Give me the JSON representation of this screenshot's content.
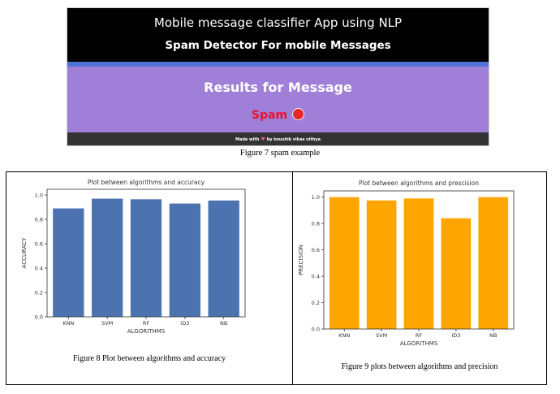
{
  "app": {
    "title": "Mobile message classifier App using NLP",
    "subtitle": "Spam Detector For mobile Messages",
    "result_heading": "Results for Message",
    "result_label": "Spam",
    "footer_made_with": "Made with",
    "footer_by": "by koushik vikas nithya",
    "colors": {
      "header": "#000000",
      "accent_bar": "#4f73d9",
      "result_bg": "#9f7fd8",
      "spam": "#e8132a"
    }
  },
  "captions": {
    "figure7": "Figure 7 spam example",
    "figure8": "Figure 8 Plot between algorithms and accuracy",
    "figure9": "Figure 9 plots between algorithms and precision"
  },
  "chart_data": [
    {
      "type": "bar",
      "title": "Plot between algorithms and accuracy",
      "xlabel": "ALGORITHMS",
      "ylabel": "ACCURACY",
      "categories": [
        "KNN",
        "SVM",
        "RF",
        "ID3",
        "NB"
      ],
      "values": [
        0.89,
        0.97,
        0.965,
        0.93,
        0.955
      ],
      "ylim": [
        0,
        1.0
      ],
      "yticks": [
        0.0,
        0.2,
        0.4,
        0.6,
        0.8,
        1.0
      ],
      "color": "#4c72b0",
      "grid": false
    },
    {
      "type": "bar",
      "title": "Plot between algorithms and prescision",
      "xlabel": "ALGORITHMS",
      "ylabel": "PRECISION",
      "categories": [
        "KNN",
        "SVM",
        "RF",
        "ID3",
        "NB"
      ],
      "values": [
        1.0,
        0.975,
        0.99,
        0.84,
        1.0
      ],
      "ylim": [
        0,
        1.0
      ],
      "yticks": [
        0.0,
        0.2,
        0.4,
        0.6,
        0.8,
        1.0
      ],
      "color": "#ffa500",
      "grid": false
    }
  ]
}
